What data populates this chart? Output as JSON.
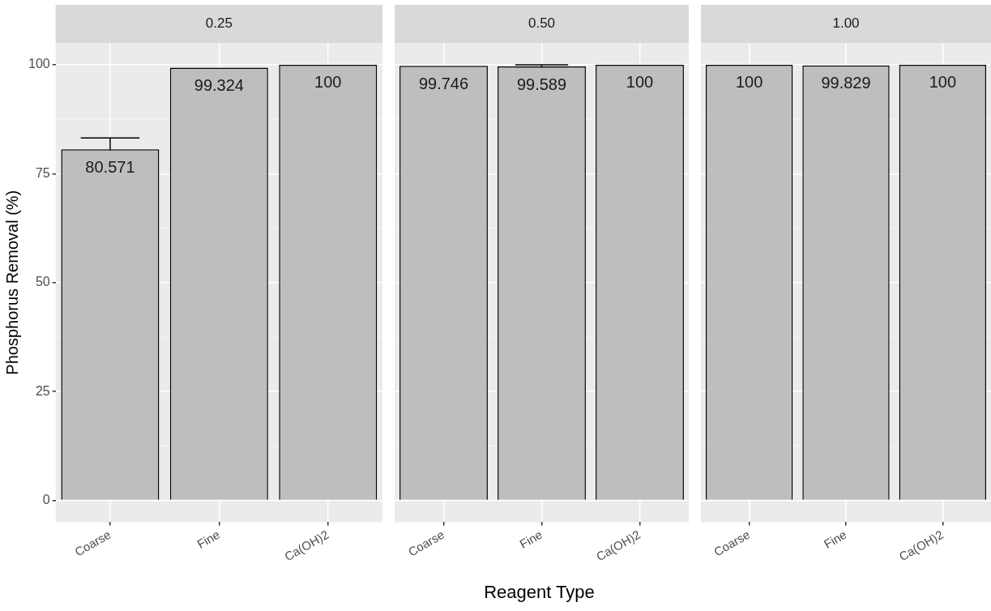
{
  "chart_data": [
    {
      "type": "bar",
      "title": "0.25",
      "ylabel": "Phosphorus Removal (%)",
      "categories": [
        "Coarse",
        "Fine",
        "Ca(OH)2"
      ],
      "values": [
        80.571,
        99.324,
        100
      ],
      "errors": [
        2.6,
        null,
        null
      ],
      "color": "#bebebe",
      "ylim": [
        -5,
        105
      ],
      "yticks": [
        0,
        25,
        50,
        75,
        100
      ],
      "grid": true,
      "data_labels": true
    },
    {
      "type": "bar",
      "title": "0.50",
      "xlabel": "Reagent Type",
      "categories": [
        "Coarse",
        "Fine",
        "Ca(OH)2"
      ],
      "values": [
        99.746,
        99.589,
        100
      ],
      "errors": [
        null,
        0.4,
        null
      ],
      "color": "#bebebe",
      "ylim": [
        -5,
        105
      ],
      "yticks": [
        0,
        25,
        50,
        75,
        100
      ],
      "grid": true,
      "data_labels": true,
      "tick_labels": "x"
    },
    {
      "type": "bar",
      "title": "1.00",
      "categories": [
        "Coarse",
        "Fine",
        "Ca(OH)2"
      ],
      "values": [
        100,
        99.829,
        100
      ],
      "color": "#bebebe",
      "ylim": [
        -5,
        105
      ],
      "yticks": [
        0,
        25,
        50,
        75,
        100
      ],
      "grid": true,
      "data_labels": true,
      "tick_labels": "x"
    }
  ]
}
